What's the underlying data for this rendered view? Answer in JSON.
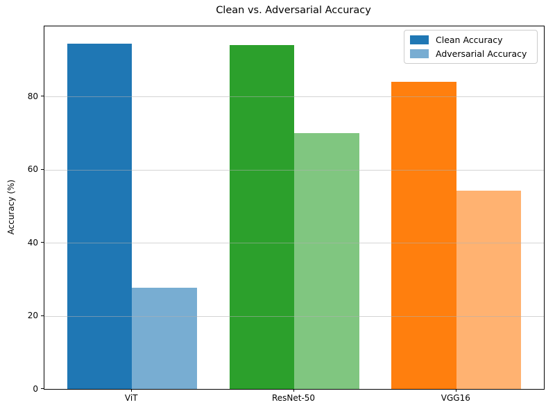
{
  "chart_data": {
    "type": "bar",
    "title": "Clean vs. Adversarial Accuracy",
    "xlabel": "",
    "ylabel": "Accuracy (%)",
    "categories": [
      "ViT",
      "ResNet-50",
      "VGG16"
    ],
    "series": [
      {
        "name": "Clean Accuracy",
        "values": [
          94.5,
          94.1,
          84.1
        ],
        "colors": [
          "#1f77b4",
          "#2ca02c",
          "#ff7f0e"
        ]
      },
      {
        "name": "Adversarial Accuracy",
        "values": [
          27.7,
          70.0,
          54.3
        ],
        "colors": [
          "#78add2",
          "#80c680",
          "#ffb271"
        ]
      }
    ],
    "ylim": [
      0,
      99.2
    ],
    "yticks": [
      0,
      20,
      40,
      60,
      80
    ],
    "grid": true,
    "grid_color": "#b0b0b0",
    "legend_position": "upper right",
    "bar_width_units": 0.4,
    "axis_color": "#000000",
    "background_color": "#ffffff"
  }
}
